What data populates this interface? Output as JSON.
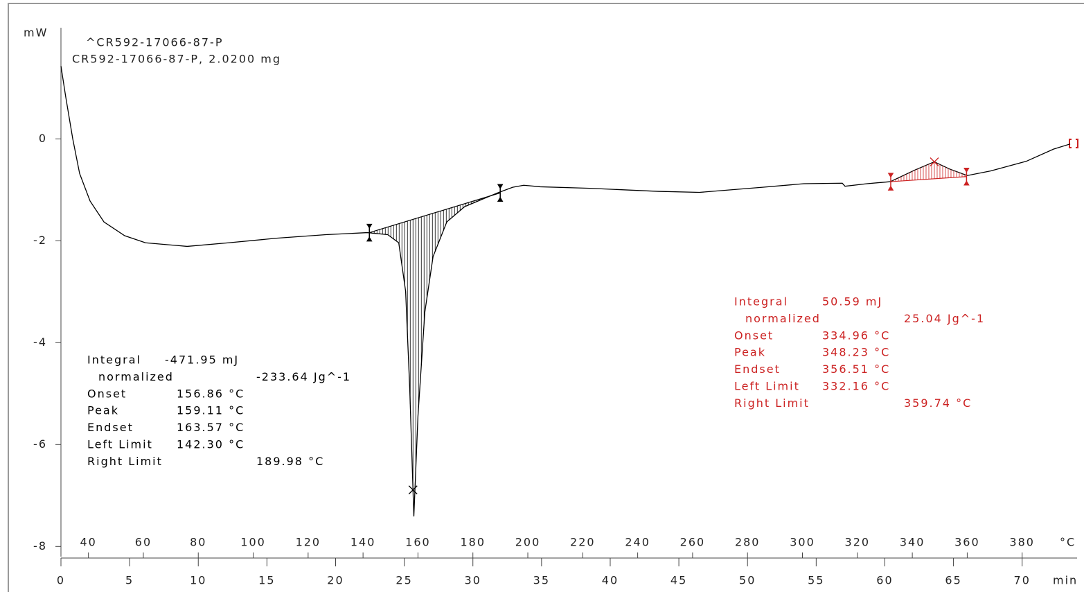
{
  "chart_data": {
    "type": "line",
    "title": "^CR592-17066-87-P",
    "subtitle": "CR592-17066-87-P, 2.0200 mg",
    "y_label": "mW",
    "x_label": "min",
    "x2_label": "°C",
    "xlim": [
      0,
      74
    ],
    "xticks": [
      0,
      5,
      10,
      15,
      20,
      25,
      30,
      35,
      40,
      45,
      50,
      55,
      60,
      65,
      70
    ],
    "x2lim": [
      30,
      400
    ],
    "x2ticks": [
      40,
      60,
      80,
      100,
      120,
      140,
      160,
      180,
      200,
      220,
      240,
      260,
      280,
      300,
      320,
      340,
      360,
      380
    ],
    "ylim": [
      -8.2,
      2.1
    ],
    "yticks": [
      0,
      -2,
      -4,
      -6,
      -8
    ],
    "series": [
      {
        "color": "#000000",
        "x": [
          0,
          0.35,
          0.86,
          1.36,
          2.12,
          3.13,
          4.64,
          6.16,
          9.19,
          12.2,
          15.7,
          19.3,
          22.3,
          23.8,
          24.6,
          25.1,
          25.4,
          25.7,
          26.0,
          26.5,
          27.1,
          28.1,
          29.4,
          30.9,
          31.8,
          32.9,
          33.7,
          34.9,
          38.5,
          43.5,
          46.5,
          51.1,
          54.1,
          56.9,
          57.1,
          58.7,
          60.4,
          62.2,
          63.6,
          64.7,
          66.0,
          67.7,
          70.3,
          72.3,
          73.5
        ],
        "values": [
          1.43,
          0.82,
          0,
          -0.68,
          -1.22,
          -1.63,
          -1.9,
          -2.04,
          -2.11,
          -2.04,
          -1.95,
          -1.88,
          -1.84,
          -1.88,
          -2.04,
          -2.99,
          -4.9,
          -7.41,
          -5.44,
          -3.4,
          -2.31,
          -1.63,
          -1.33,
          -1.16,
          -1.06,
          -0.95,
          -0.91,
          -0.94,
          -0.97,
          -1.03,
          -1.05,
          -0.95,
          -0.88,
          -0.87,
          -0.93,
          -0.88,
          -0.84,
          -0.61,
          -0.45,
          -0.59,
          -0.72,
          -0.63,
          -0.44,
          -0.2,
          -0.1
        ]
      }
    ],
    "integrations": [
      {
        "color": "#000000",
        "baseline_x": [
          22.46,
          31.99
        ],
        "baseline_y": [
          -1.84,
          -1.06
        ],
        "rows": [
          [
            "Integral",
            "-471.95 mJ"
          ],
          [
            "normalized",
            "-233.64 Jg^-1"
          ],
          [
            "Onset",
            "156.86 °C"
          ],
          [
            "Peak",
            "159.11 °C"
          ],
          [
            "Endset",
            "163.57 °C"
          ],
          [
            "Left Limit",
            "142.30 °C"
          ],
          [
            "Right Limit",
            "189.98 °C"
          ]
        ]
      },
      {
        "color": "#cc2222",
        "baseline_x": [
          60.43,
          65.95
        ],
        "baseline_y": [
          -0.84,
          -0.74
        ],
        "rows": [
          [
            "Integral",
            "50.59 mJ"
          ],
          [
            "normalized",
            "25.04 Jg^-1"
          ],
          [
            "Onset",
            "334.96 °C"
          ],
          [
            "Peak",
            "348.23 °C"
          ],
          [
            "Endset",
            "356.51 °C"
          ],
          [
            "Left Limit",
            "332.16 °C"
          ],
          [
            "Right Limit",
            "359.74 °C"
          ]
        ]
      }
    ]
  }
}
